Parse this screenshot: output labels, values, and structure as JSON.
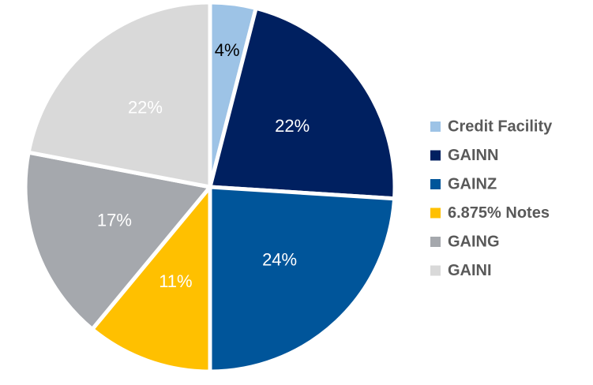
{
  "chart_data": {
    "type": "pie",
    "categories": [
      "Credit Facility",
      "GAINN",
      "GAINZ",
      "6.875% Notes",
      "GAING",
      "GAINI"
    ],
    "values": [
      4,
      22,
      24,
      11,
      17,
      22
    ],
    "value_labels": [
      "4%",
      "22%",
      "24%",
      "11%",
      "17%",
      "22%"
    ],
    "colors": [
      "#9dc3e6",
      "#002060",
      "#00559a",
      "#ffc000",
      "#a5a8ad",
      "#d9d9d9"
    ],
    "label_colors": [
      "#000000",
      "#ffffff",
      "#ffffff",
      "#ffffff",
      "#ffffff",
      "#ffffff"
    ],
    "legend": "right"
  }
}
